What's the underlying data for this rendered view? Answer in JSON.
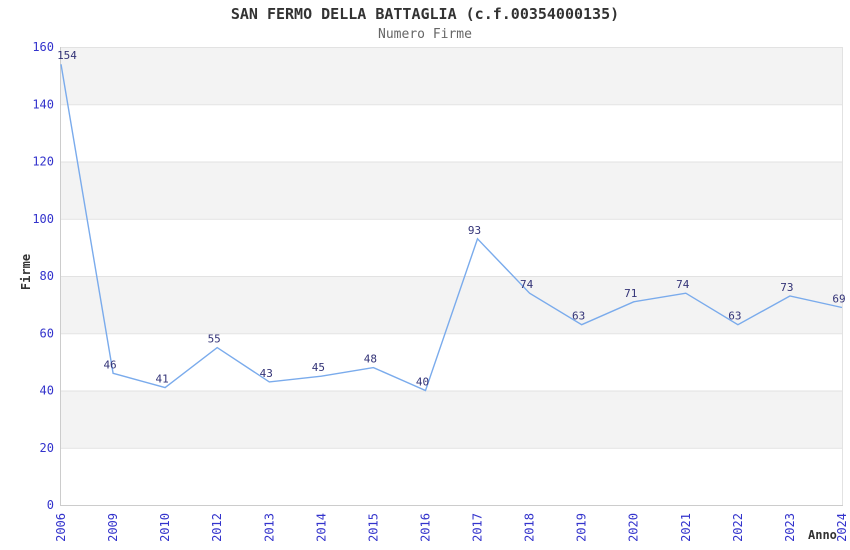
{
  "chart_data": {
    "type": "line",
    "title": "SAN FERMO DELLA BATTAGLIA (c.f.00354000135)",
    "subtitle": "Numero Firme",
    "xlabel": "Anno",
    "ylabel": "Firme",
    "categories": [
      "2006",
      "2009",
      "2010",
      "2012",
      "2013",
      "2014",
      "2015",
      "2016",
      "2017",
      "2018",
      "2019",
      "2020",
      "2021",
      "2022",
      "2023",
      "2024"
    ],
    "values": [
      154,
      46,
      41,
      55,
      43,
      45,
      48,
      40,
      93,
      74,
      63,
      71,
      74,
      63,
      73,
      69
    ],
    "ylim": [
      0,
      160
    ],
    "yticks": [
      0,
      20,
      40,
      60,
      80,
      100,
      120,
      140,
      160
    ],
    "grid": "horizontal gridlines with alternating gray bands",
    "legend_position": "none",
    "point_labels_visible": true,
    "colors": {
      "line": "#7aabec",
      "point_label": "#333377",
      "tick_label": "#3333cc",
      "band": "#f3f3f3",
      "gridline": "#e2e2e2",
      "axis": "#cccccc",
      "title": "#333333",
      "subtitle": "#666666",
      "axis_title": "#333333",
      "background": "#ffffff"
    }
  }
}
